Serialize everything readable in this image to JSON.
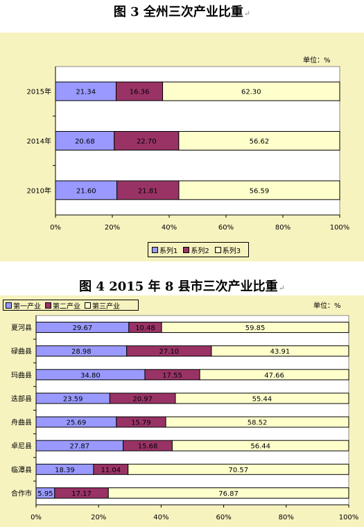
{
  "fig3": {
    "title": "图 3   全州三次产业比重",
    "unit": "单位：%",
    "legend": [
      "系列1",
      "系列2",
      "系列3"
    ],
    "colors": [
      "#9999ff",
      "#993366",
      "#ffffcc"
    ],
    "chart_data": {
      "type": "bar",
      "orientation": "horizontal",
      "stacked": "percent",
      "categories": [
        "2015年",
        "2014年",
        "2010年"
      ],
      "series": [
        {
          "name": "系列1",
          "values": [
            21.34,
            20.68,
            21.6
          ]
        },
        {
          "name": "系列2",
          "values": [
            16.36,
            22.7,
            21.81
          ]
        },
        {
          "name": "系列3",
          "values": [
            62.3,
            56.62,
            56.59
          ]
        }
      ],
      "xticks": [
        "0%",
        "20%",
        "40%",
        "60%",
        "80%",
        "100%"
      ],
      "xlim": [
        0,
        100
      ],
      "legend_position": "bottom"
    }
  },
  "fig4": {
    "title": "图 4   2015 年 8 县市三次产业比重",
    "unit": "单位：%",
    "legend": [
      "第一产业",
      "第二产业",
      "第三产业"
    ],
    "colors": [
      "#9999ff",
      "#993366",
      "#ffffcc"
    ],
    "chart_data": {
      "type": "bar",
      "orientation": "horizontal",
      "stacked": "percent",
      "categories": [
        "夏河县",
        "碌曲县",
        "玛曲县",
        "迭部县",
        "舟曲县",
        "卓尼县",
        "临潭县",
        "合作市"
      ],
      "series": [
        {
          "name": "第一产业",
          "values": [
            29.67,
            28.98,
            34.8,
            23.59,
            25.69,
            27.87,
            18.39,
            5.95
          ]
        },
        {
          "name": "第二产业",
          "values": [
            10.48,
            27.1,
            17.55,
            20.97,
            15.79,
            15.68,
            11.04,
            17.17
          ]
        },
        {
          "name": "第三产业",
          "values": [
            59.85,
            43.91,
            47.66,
            55.44,
            58.52,
            56.44,
            70.57,
            76.87
          ]
        }
      ],
      "xticks": [
        "0%",
        "20%",
        "40%",
        "60%",
        "80%",
        "100%"
      ],
      "xlim": [
        0,
        100
      ],
      "legend_position": "top-left"
    }
  }
}
